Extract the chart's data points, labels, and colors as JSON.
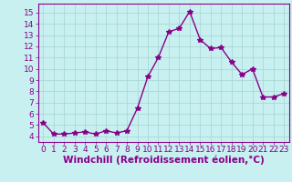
{
  "x": [
    0,
    1,
    2,
    3,
    4,
    5,
    6,
    7,
    8,
    9,
    10,
    11,
    12,
    13,
    14,
    15,
    16,
    17,
    18,
    19,
    20,
    21,
    22,
    23
  ],
  "y": [
    5.2,
    4.2,
    4.2,
    4.3,
    4.4,
    4.2,
    4.5,
    4.3,
    4.5,
    6.5,
    9.3,
    11.0,
    13.3,
    13.6,
    15.1,
    12.6,
    11.8,
    11.9,
    10.6,
    9.5,
    10.0,
    7.5,
    7.5,
    7.8
  ],
  "line_color": "#880088",
  "marker": "*",
  "marker_size": 4,
  "background_color": "#c8f0f0",
  "grid_color": "#a8d8d8",
  "xlabel": "Windchill (Refroidissement éolien,°C)",
  "xlabel_fontsize": 7.5,
  "tick_fontsize": 6.5,
  "xlim": [
    -0.5,
    23.5
  ],
  "ylim": [
    3.5,
    15.8
  ],
  "yticks": [
    4,
    5,
    6,
    7,
    8,
    9,
    10,
    11,
    12,
    13,
    14,
    15
  ],
  "xticks": [
    0,
    1,
    2,
    3,
    4,
    5,
    6,
    7,
    8,
    9,
    10,
    11,
    12,
    13,
    14,
    15,
    16,
    17,
    18,
    19,
    20,
    21,
    22,
    23
  ],
  "linewidth": 1.0,
  "spine_color": "#880088",
  "label_color": "#880088"
}
